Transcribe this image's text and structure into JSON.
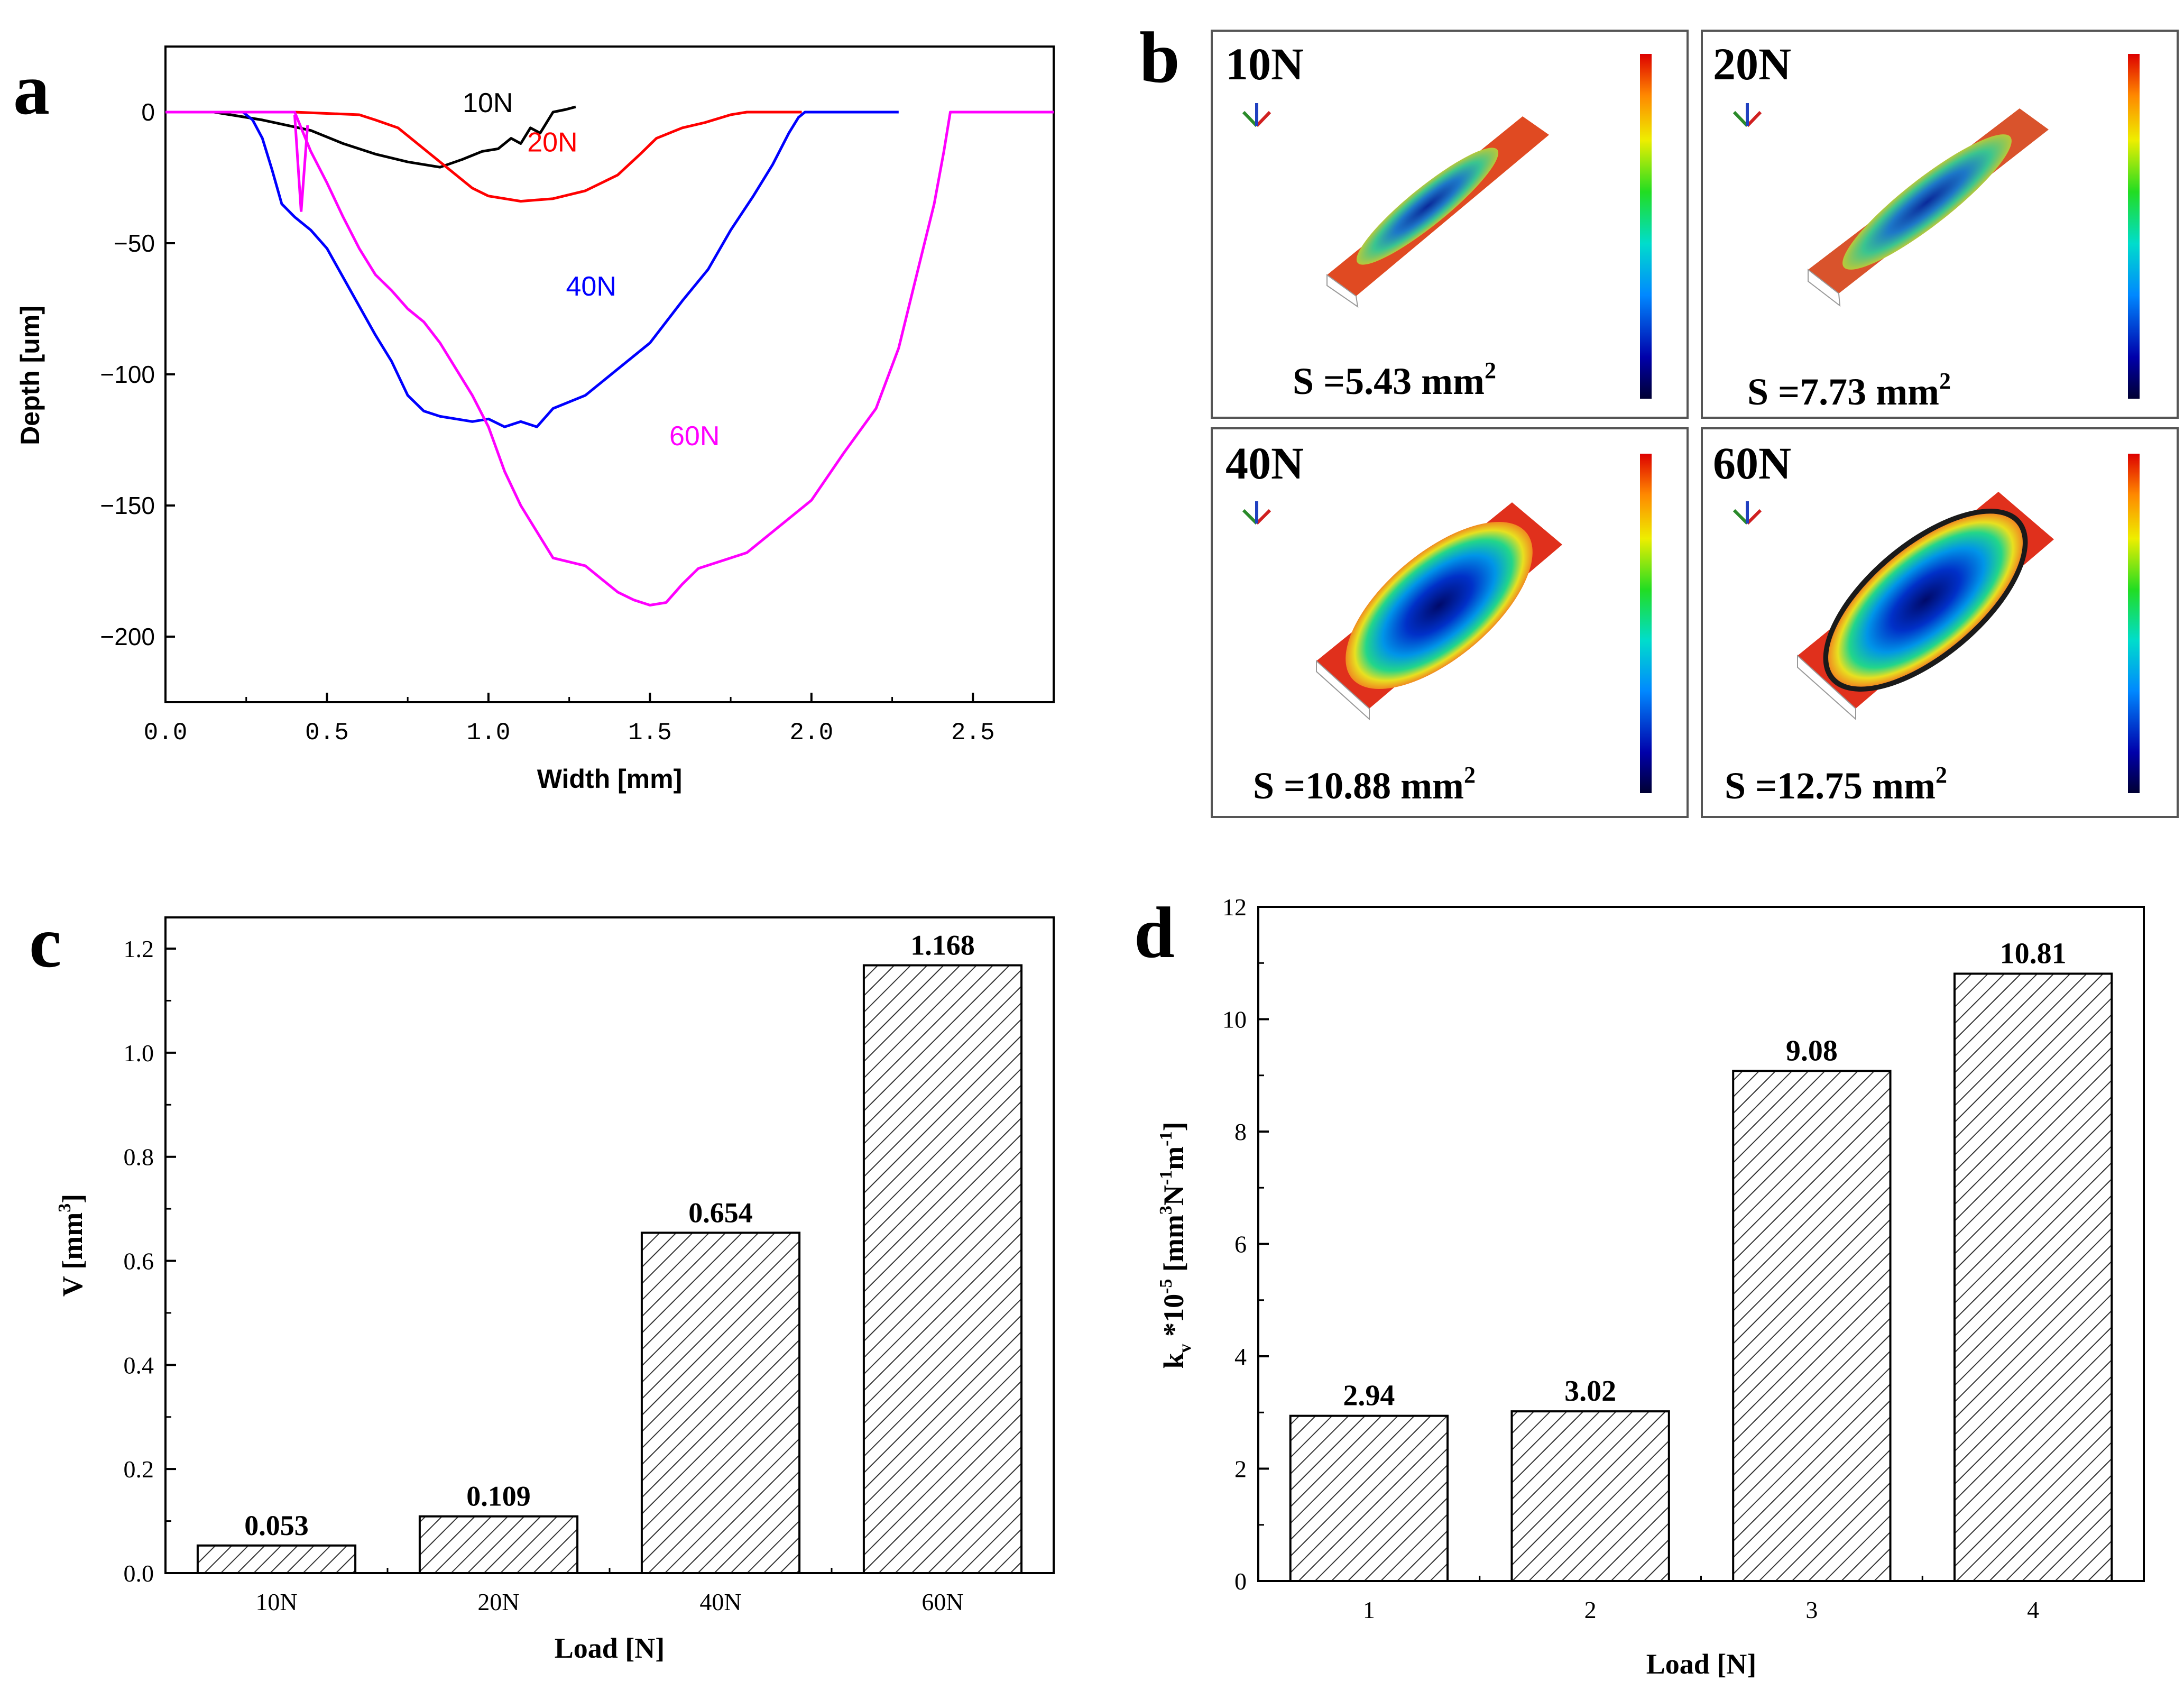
{
  "panel_a": {
    "letter": "a",
    "chart_data": {
      "type": "line",
      "xlabel": "Width [mm]",
      "ylabel": "Depth [um]",
      "xlim": [
        0,
        2.75
      ],
      "ylim": [
        -225,
        25
      ],
      "xticks": [
        "0.0",
        "0.5",
        "1.0",
        "1.5",
        "2.0",
        "2.5"
      ],
      "yticks": [
        "0",
        "-50",
        "-100",
        "-150",
        "-200"
      ],
      "series": [
        {
          "name": "10N",
          "color": "#000000",
          "points": [
            [
              0,
              0
            ],
            [
              0.15,
              0
            ],
            [
              0.3,
              -3
            ],
            [
              0.45,
              -7
            ],
            [
              0.55,
              -12
            ],
            [
              0.65,
              -16
            ],
            [
              0.75,
              -19
            ],
            [
              0.85,
              -21
            ],
            [
              0.92,
              -18
            ],
            [
              0.98,
              -15
            ],
            [
              1.03,
              -14
            ],
            [
              1.07,
              -10
            ],
            [
              1.1,
              -12
            ],
            [
              1.13,
              -6
            ],
            [
              1.16,
              -8
            ],
            [
              1.2,
              0
            ],
            [
              1.24,
              1
            ],
            [
              1.27,
              2
            ]
          ]
        },
        {
          "name": "20N",
          "color": "#ff0000",
          "points": [
            [
              0.4,
              0
            ],
            [
              0.6,
              -1
            ],
            [
              0.65,
              -3
            ],
            [
              0.72,
              -6
            ],
            [
              0.8,
              -14
            ],
            [
              0.88,
              -22
            ],
            [
              0.95,
              -29
            ],
            [
              1.0,
              -32
            ],
            [
              1.1,
              -34
            ],
            [
              1.2,
              -33
            ],
            [
              1.3,
              -30
            ],
            [
              1.4,
              -24
            ],
            [
              1.47,
              -16
            ],
            [
              1.52,
              -10
            ],
            [
              1.6,
              -6
            ],
            [
              1.67,
              -4
            ],
            [
              1.75,
              -1
            ],
            [
              1.8,
              0
            ],
            [
              1.9,
              0
            ],
            [
              1.97,
              0
            ]
          ]
        },
        {
          "name": "40N",
          "color": "#0000ff",
          "points": [
            [
              0,
              0
            ],
            [
              0.24,
              0
            ],
            [
              0.27,
              -3
            ],
            [
              0.3,
              -10
            ],
            [
              0.33,
              -22
            ],
            [
              0.36,
              -35
            ],
            [
              0.4,
              -40
            ],
            [
              0.45,
              -45
            ],
            [
              0.5,
              -52
            ],
            [
              0.55,
              -63
            ],
            [
              0.6,
              -74
            ],
            [
              0.65,
              -85
            ],
            [
              0.7,
              -95
            ],
            [
              0.75,
              -108
            ],
            [
              0.8,
              -114
            ],
            [
              0.85,
              -116
            ],
            [
              0.9,
              -117
            ],
            [
              0.95,
              -118
            ],
            [
              1.0,
              -117
            ],
            [
              1.05,
              -120
            ],
            [
              1.1,
              -118
            ],
            [
              1.15,
              -120
            ],
            [
              1.2,
              -113
            ],
            [
              1.3,
              -108
            ],
            [
              1.4,
              -98
            ],
            [
              1.5,
              -88
            ],
            [
              1.6,
              -72
            ],
            [
              1.68,
              -60
            ],
            [
              1.75,
              -45
            ],
            [
              1.82,
              -32
            ],
            [
              1.88,
              -20
            ],
            [
              1.93,
              -8
            ],
            [
              1.96,
              -2
            ],
            [
              1.98,
              0
            ],
            [
              2.27,
              0
            ]
          ]
        },
        {
          "name": "60N",
          "color": "#ff00ff",
          "points": [
            [
              0,
              0
            ],
            [
              0.4,
              0
            ],
            [
              0.45,
              -15
            ],
            [
              0.5,
              -27
            ],
            [
              0.55,
              -40
            ],
            [
              0.6,
              -52
            ],
            [
              0.65,
              -62
            ],
            [
              0.7,
              -68
            ],
            [
              0.75,
              -75
            ],
            [
              0.8,
              -80
            ],
            [
              0.85,
              -88
            ],
            [
              0.9,
              -98
            ],
            [
              0.95,
              -108
            ],
            [
              1.0,
              -120
            ],
            [
              1.05,
              -137
            ],
            [
              1.1,
              -150
            ],
            [
              1.15,
              -160
            ],
            [
              1.2,
              -170
            ],
            [
              1.3,
              -173
            ],
            [
              1.35,
              -178
            ],
            [
              1.4,
              -183
            ],
            [
              1.45,
              -186
            ],
            [
              1.5,
              -188
            ],
            [
              1.55,
              -187
            ],
            [
              1.6,
              -180
            ],
            [
              1.65,
              -174
            ],
            [
              1.7,
              -172
            ],
            [
              1.8,
              -168
            ],
            [
              1.9,
              -158
            ],
            [
              2.0,
              -148
            ],
            [
              2.1,
              -130
            ],
            [
              2.2,
              -113
            ],
            [
              2.27,
              -90
            ],
            [
              2.33,
              -60
            ],
            [
              2.38,
              -35
            ],
            [
              2.41,
              -15
            ],
            [
              2.43,
              0
            ],
            [
              2.75,
              0
            ]
          ]
        }
      ],
      "annotations": [
        {
          "text": "10N",
          "color": "#000000",
          "x": 0.92,
          "y": 0
        },
        {
          "text": "20N",
          "color": "#ff0000",
          "x": 1.12,
          "y": -15
        },
        {
          "text": "40N",
          "color": "#0000ff",
          "x": 1.24,
          "y": -70
        },
        {
          "text": "60N",
          "color": "#ff00ff",
          "x": 1.56,
          "y": -127
        }
      ]
    }
  },
  "panel_b": {
    "letter": "b",
    "tiles": [
      {
        "load": "10N",
        "area_prefix": "S =5.43 mm",
        "area_sup": "2"
      },
      {
        "load": "20N",
        "area_prefix": "S =7.73 mm",
        "area_sup": "2"
      },
      {
        "load": "40N",
        "area_prefix": "S =10.88 mm",
        "area_sup": "2"
      },
      {
        "load": "60N",
        "area_prefix": "S =12.75 mm",
        "area_sup": "2"
      }
    ]
  },
  "panel_c": {
    "letter": "c",
    "chart_data": {
      "type": "bar",
      "categories": [
        "10N",
        "20N",
        "40N",
        "60N"
      ],
      "values": [
        0.053,
        0.109,
        0.654,
        1.168
      ],
      "value_labels": [
        "0.053",
        "0.109",
        "0.654",
        "1.168"
      ],
      "xlabel": "Load [N]",
      "ylabel_main": "V [mm",
      "ylabel_sup": "3",
      "ylabel_end": "]",
      "ylim": [
        0,
        1.26
      ],
      "yticks": [
        "0.0",
        "0.2",
        "0.4",
        "0.6",
        "0.8",
        "1.0",
        "1.2"
      ],
      "fill": "diagonal-hatch"
    }
  },
  "panel_d": {
    "letter": "d",
    "chart_data": {
      "type": "bar",
      "categories": [
        "1",
        "2",
        "3",
        "4"
      ],
      "values": [
        2.94,
        3.02,
        9.08,
        10.81
      ],
      "value_labels": [
        "2.94",
        "3.02",
        "9.08",
        "10.81"
      ],
      "xlabel": "Load [N]",
      "ylabel_parts": {
        "k": "k",
        "k_sub": "v",
        "times": " *10",
        "exp": "-5",
        "unit_open": " [mm",
        "unit_exp1": "3",
        "unit_n": "N",
        "unit_exp2": "-1",
        "unit_m": "m",
        "unit_exp3": "-1",
        "unit_close": "]"
      },
      "ylim": [
        0,
        12
      ],
      "yticks": [
        "0",
        "2",
        "4",
        "6",
        "8",
        "10",
        "12"
      ],
      "fill": "diagonal-hatch"
    }
  }
}
